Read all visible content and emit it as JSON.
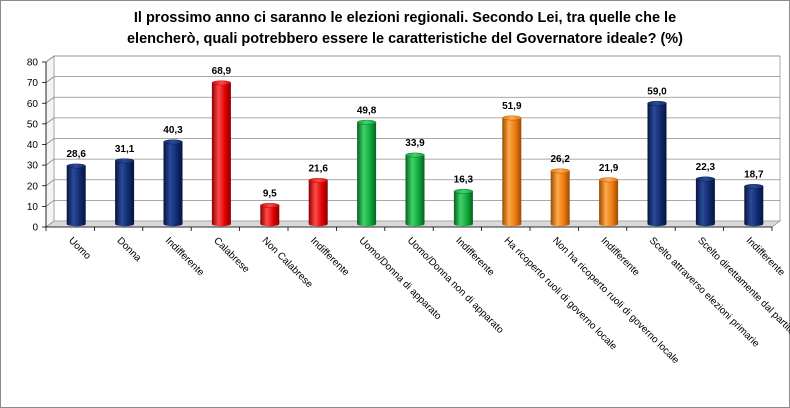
{
  "chart_data": {
    "type": "bar",
    "title_lines": [
      "Il prossimo anno ci saranno le elezioni regionali. Secondo Lei, tra quelle che le",
      "elencherò, quali potrebbero essere le caratteristiche del Governatore ideale? (%)"
    ],
    "categories": [
      "Uomo",
      "Donna",
      "Indifferente",
      "Calabrese",
      "Non Calabrese",
      "Indifferente",
      "Uomo/Donna di apparato",
      "Uomo/Donna non di apparato",
      "Indifferente",
      "Ha ricoperto ruoli di governo locale",
      "Non ha ricoperto ruoli di governo locale",
      "Indifferente",
      "Scelto attraverso elezioni primarie",
      "Scelto direttamente dal partito",
      "Indifferente"
    ],
    "values": [
      28.6,
      31.1,
      40.3,
      68.9,
      9.5,
      21.6,
      49.8,
      33.9,
      16.3,
      51.9,
      26.2,
      21.9,
      59.0,
      22.3,
      18.7
    ],
    "value_labels": [
      "28,6",
      "31,1",
      "40,3",
      "68,9",
      "9,5",
      "21,6",
      "49,8",
      "33,9",
      "16,3",
      "51,9",
      "26,2",
      "21,9",
      "59,0",
      "22,3",
      "18,7"
    ],
    "bar_colors": [
      "navy",
      "navy",
      "navy",
      "red",
      "red",
      "red",
      "green",
      "green",
      "green",
      "orange",
      "orange",
      "orange",
      "navy",
      "navy",
      "navy"
    ],
    "palette": {
      "navy": {
        "light": "#2a4a9a",
        "mid": "#0f2a6e",
        "dark": "#06153d"
      },
      "red": {
        "light": "#ff4a4a",
        "mid": "#e00000",
        "dark": "#8a0000"
      },
      "green": {
        "light": "#3fd46a",
        "mid": "#0fa83a",
        "dark": "#06601f"
      },
      "orange": {
        "light": "#ffa94a",
        "mid": "#ea7a10",
        "dark": "#9a4a00"
      }
    },
    "ylim": [
      0,
      80
    ],
    "yticks": [
      0,
      10,
      20,
      30,
      40,
      50,
      60,
      70,
      80
    ],
    "grid": true,
    "style": "3d-cylinder"
  }
}
